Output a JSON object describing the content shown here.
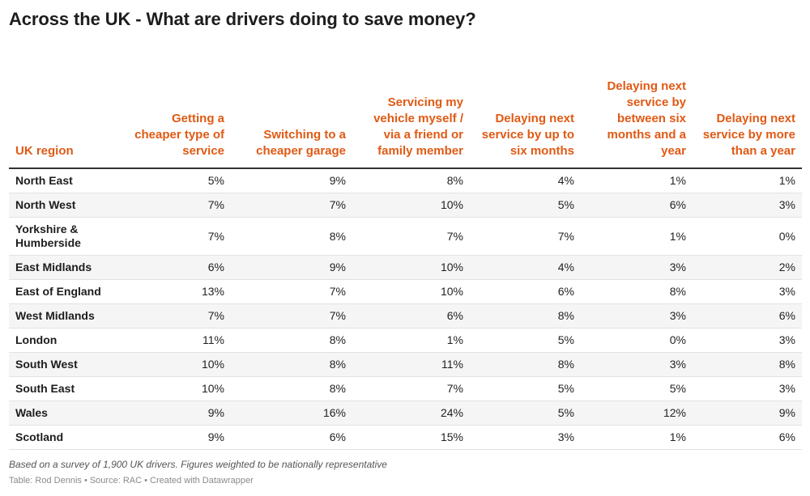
{
  "title": "Across the UK - What are drivers doing to save money?",
  "notes": "Based on a survey of 1,900 UK drivers. Figures weighted to be nationally representative",
  "credits": "Table: Rod Dennis • Source: RAC • Created with Datawrapper",
  "colors": {
    "header_text": "#e05a14",
    "stripe": "#f5f5f5",
    "rule": "#333333"
  },
  "chart_data": {
    "type": "table",
    "columns": [
      "UK region",
      "Getting a cheaper type of service",
      "Switching to a cheaper garage",
      "Servicing my vehicle myself / via a friend or family member",
      "Delaying next service by up to six months",
      "Delaying next service by between six months and a year",
      "Delaying next service by more than a year"
    ],
    "rows": [
      [
        "North East",
        "5%",
        "9%",
        "8%",
        "4%",
        "1%",
        "1%"
      ],
      [
        "North West",
        "7%",
        "7%",
        "10%",
        "5%",
        "6%",
        "3%"
      ],
      [
        "Yorkshire & Humberside",
        "7%",
        "8%",
        "7%",
        "7%",
        "1%",
        "0%"
      ],
      [
        "East Midlands",
        "6%",
        "9%",
        "10%",
        "4%",
        "3%",
        "2%"
      ],
      [
        "East of England",
        "13%",
        "7%",
        "10%",
        "6%",
        "8%",
        "3%"
      ],
      [
        "West Midlands",
        "7%",
        "7%",
        "6%",
        "8%",
        "3%",
        "6%"
      ],
      [
        "London",
        "11%",
        "8%",
        "1%",
        "5%",
        "0%",
        "3%"
      ],
      [
        "South West",
        "10%",
        "8%",
        "11%",
        "8%",
        "3%",
        "8%"
      ],
      [
        "South East",
        "10%",
        "8%",
        "7%",
        "5%",
        "5%",
        "3%"
      ],
      [
        "Wales",
        "9%",
        "16%",
        "24%",
        "5%",
        "12%",
        "9%"
      ],
      [
        "Scotland",
        "9%",
        "6%",
        "15%",
        "3%",
        "1%",
        "6%"
      ]
    ]
  }
}
